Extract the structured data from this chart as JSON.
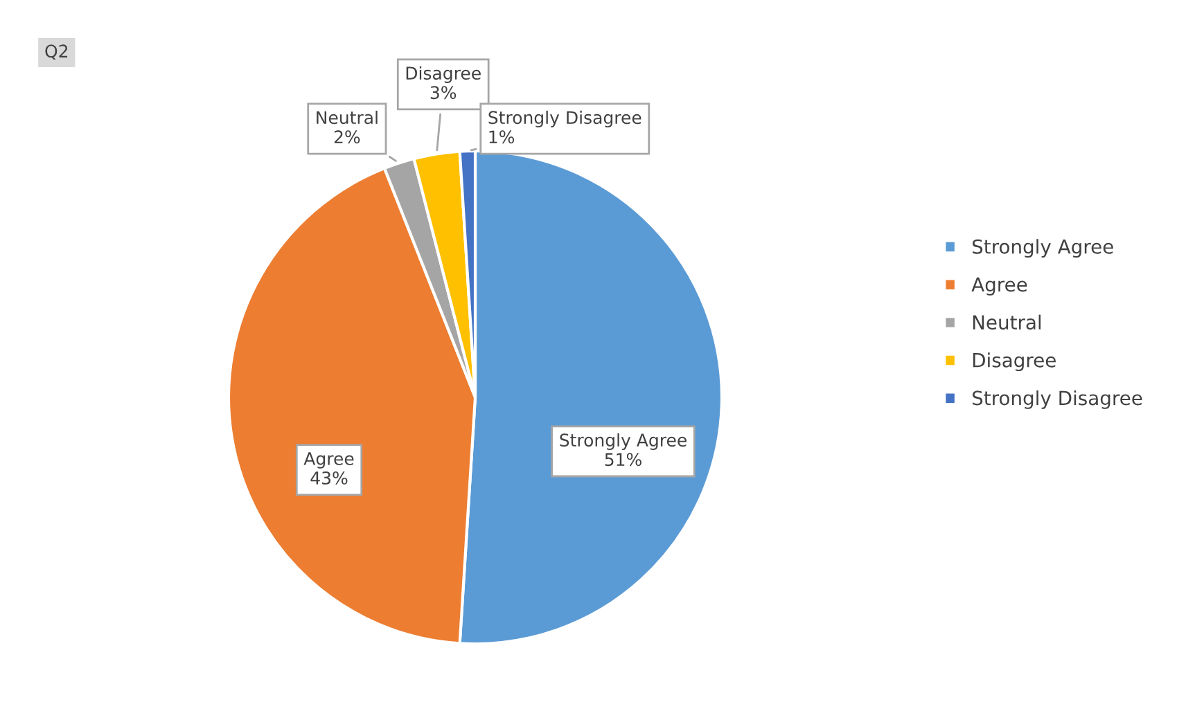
{
  "chart_data": {
    "type": "pie",
    "title": "Q2",
    "categories": [
      "Strongly Agree",
      "Agree",
      "Neutral",
      "Disagree",
      "Strongly Disagree"
    ],
    "values": [
      51,
      43,
      2,
      3,
      1
    ],
    "colors": [
      "#5b9bd5",
      "#ed7d31",
      "#a5a5a5",
      "#ffc000",
      "#4472c4"
    ],
    "value_labels": [
      "51%",
      "43%",
      "2%",
      "3%",
      "1%"
    ],
    "legend": "right"
  }
}
